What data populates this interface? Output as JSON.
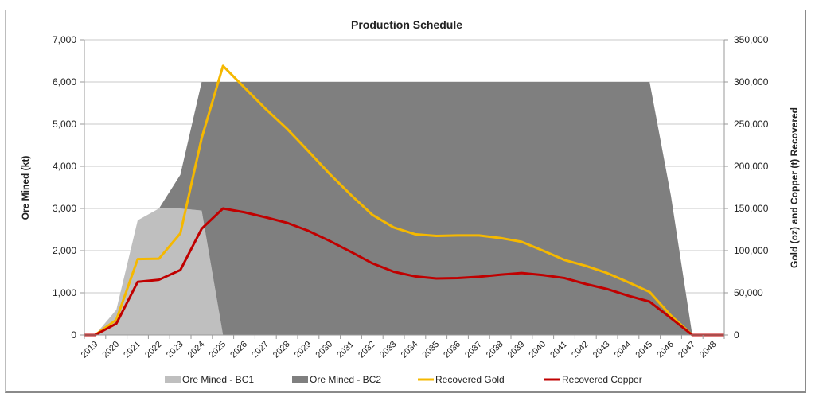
{
  "chart_data": {
    "type": "area+line",
    "title": "Production Schedule",
    "ylabel": "Ore Mined (kt)",
    "y2label": "Gold (oz) and Copper (t) Recovered",
    "ylim": [
      0,
      7000
    ],
    "y2lim": [
      0,
      350000
    ],
    "yticks": [
      "0",
      "1,000",
      "2,000",
      "3,000",
      "4,000",
      "5,000",
      "6,000",
      "7,000"
    ],
    "y2ticks": [
      "0",
      "50,000",
      "100,000",
      "150,000",
      "200,000",
      "250,000",
      "300,000",
      "350,000"
    ],
    "grid": true,
    "legend": "bottom",
    "categories": [
      "2019",
      "2020",
      "2021",
      "2022",
      "2023",
      "2024",
      "2025",
      "2026",
      "2027",
      "2028",
      "2029",
      "2030",
      "2031",
      "2032",
      "2033",
      "2034",
      "2035",
      "2036",
      "2037",
      "2038",
      "2039",
      "2040",
      "2041",
      "2042",
      "2043",
      "2044",
      "2045",
      "2046",
      "2047",
      "2048"
    ],
    "series": [
      {
        "name": "Ore Mined - BC1",
        "type": "stacked-area",
        "axis": "left",
        "color": "#bfbfbf",
        "values": [
          0,
          600,
          2720,
          3000,
          3000,
          2950,
          0,
          0,
          0,
          0,
          0,
          0,
          0,
          0,
          0,
          0,
          0,
          0,
          0,
          0,
          0,
          0,
          0,
          0,
          0,
          0,
          0,
          0,
          0,
          0
        ]
      },
      {
        "name": "Ore Mined - BC2",
        "type": "stacked-area",
        "axis": "left",
        "color": "#7f7f7f",
        "values": [
          0,
          0,
          0,
          0,
          800,
          3050,
          6000,
          6000,
          6000,
          6000,
          6000,
          6000,
          6000,
          6000,
          6000,
          6000,
          6000,
          6000,
          6000,
          6000,
          6000,
          6000,
          6000,
          6000,
          6000,
          6000,
          6000,
          3300,
          0,
          0
        ]
      },
      {
        "name": "Recovered Gold",
        "type": "line",
        "axis": "right",
        "color": "#f5b800",
        "values": [
          0,
          18000,
          90000,
          90500,
          120500,
          233500,
          319000,
          293500,
          268000,
          244500,
          218000,
          191000,
          166000,
          142500,
          127500,
          119500,
          117500,
          118000,
          118000,
          115000,
          110500,
          100000,
          89000,
          82000,
          73500,
          62500,
          51000,
          23000,
          0,
          0
        ]
      },
      {
        "name": "Recovered Copper",
        "type": "line",
        "axis": "right",
        "color": "#c00000",
        "values": [
          0,
          13500,
          63000,
          65500,
          77000,
          126000,
          150000,
          145500,
          139500,
          133000,
          123500,
          111500,
          98500,
          85000,
          75000,
          69500,
          67000,
          67500,
          69000,
          71500,
          73500,
          71000,
          67500,
          60500,
          54500,
          46500,
          39500,
          20000,
          0,
          0
        ]
      }
    ]
  }
}
